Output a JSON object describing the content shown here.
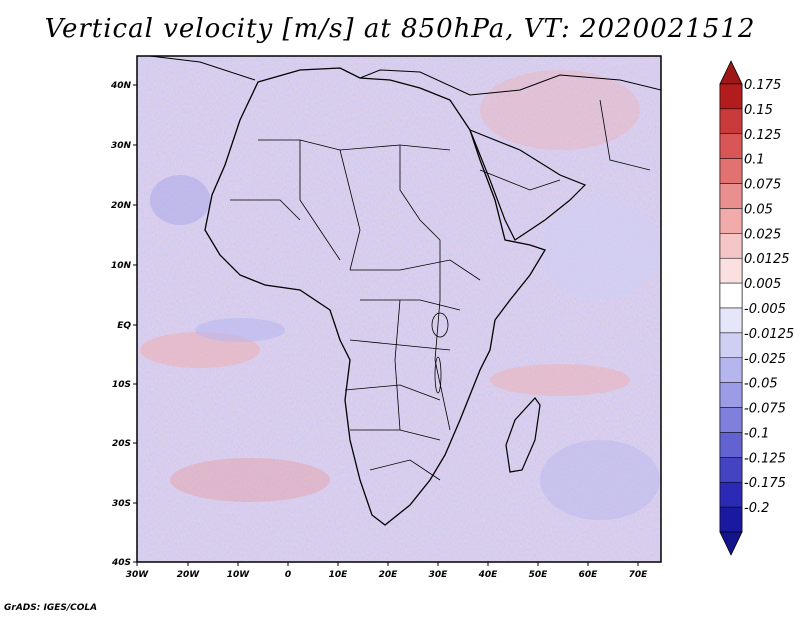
{
  "title": "Vertical velocity [m/s] at 850hPa, VT: 2020021512",
  "footer": "GrADS: IGES/COLA",
  "map": {
    "region": "Africa",
    "x_ticks": [
      "30W",
      "20W",
      "10W",
      "0",
      "10E",
      "20E",
      "30E",
      "40E",
      "50E",
      "60E",
      "70E"
    ],
    "y_ticks": [
      "40N",
      "30N",
      "20N",
      "10N",
      "EQ",
      "10S",
      "20S",
      "30S",
      "40S"
    ],
    "lon_range": [
      -30,
      75
    ],
    "lat_range": [
      -40,
      45
    ]
  },
  "colorbar": {
    "levels": [
      "0.175",
      "0.15",
      "0.125",
      "0.1",
      "0.075",
      "0.05",
      "0.025",
      "0.0125",
      "0.005",
      "-0.005",
      "-0.0125",
      "-0.025",
      "-0.05",
      "-0.075",
      "-0.1",
      "-0.125",
      "-0.175",
      "-0.2"
    ],
    "colors": [
      "#b31c1c",
      "#c93a3a",
      "#d85656",
      "#e27272",
      "#ea8f8f",
      "#f1abab",
      "#f6c5c5",
      "#fbe0e0",
      "#ffffff",
      "#e6e6fa",
      "#cfcff4",
      "#b6b6ee",
      "#9b9be6",
      "#7f7fdc",
      "#6262d0",
      "#4444c2",
      "#2a2ab4",
      "#1a1aa0"
    ]
  }
}
